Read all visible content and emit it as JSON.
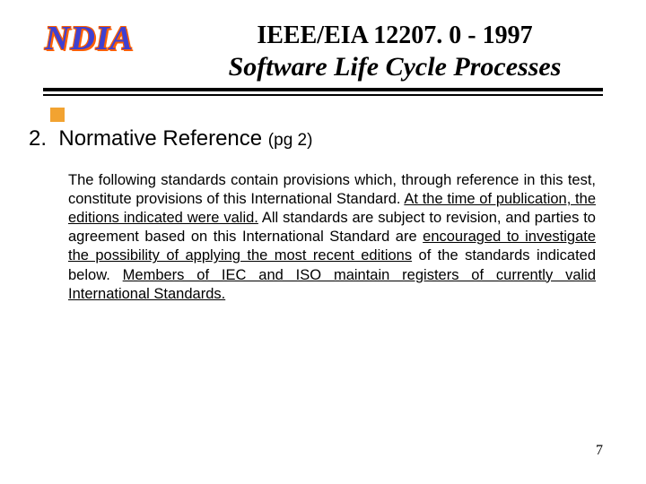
{
  "logo": {
    "text": "NDIA"
  },
  "title": {
    "line1": "IEEE/EIA 12207. 0 - 1997",
    "line2": "Software Life Cycle Processes"
  },
  "section": {
    "number": "2.",
    "title": "Normative Reference",
    "pg": "(pg 2)"
  },
  "body": {
    "p1a": "The following standards contain provisions which, through reference in this test, constitute provisions of this International Standard. ",
    "p1b": "At the time of publication, the editions indicated were valid.",
    "p1c": " All standards are subject to revision, and parties to agreement based on this International Standard are ",
    "p1d": "encouraged to investigate the possibility of applying the most recent editions",
    "p1e": " of the standards indicated below. ",
    "p1f": "Members of IEC and ISO maintain registers of currently valid International Standards.",
    "p1g": ""
  },
  "pageNumber": "7",
  "styling": {
    "background": "#ffffff",
    "logo_color": "#4040d0",
    "logo_outline": "#ff6000",
    "accent_square": "#f2a331",
    "text_color": "#000000",
    "title_font": "Times New Roman",
    "body_font": "Arial",
    "title_line1_fontsize_pt": 21,
    "title_line2_fontsize_pt": 22,
    "section_fontsize_pt": 18,
    "body_fontsize_pt": 12,
    "pagenum_fontsize_pt": 12
  }
}
